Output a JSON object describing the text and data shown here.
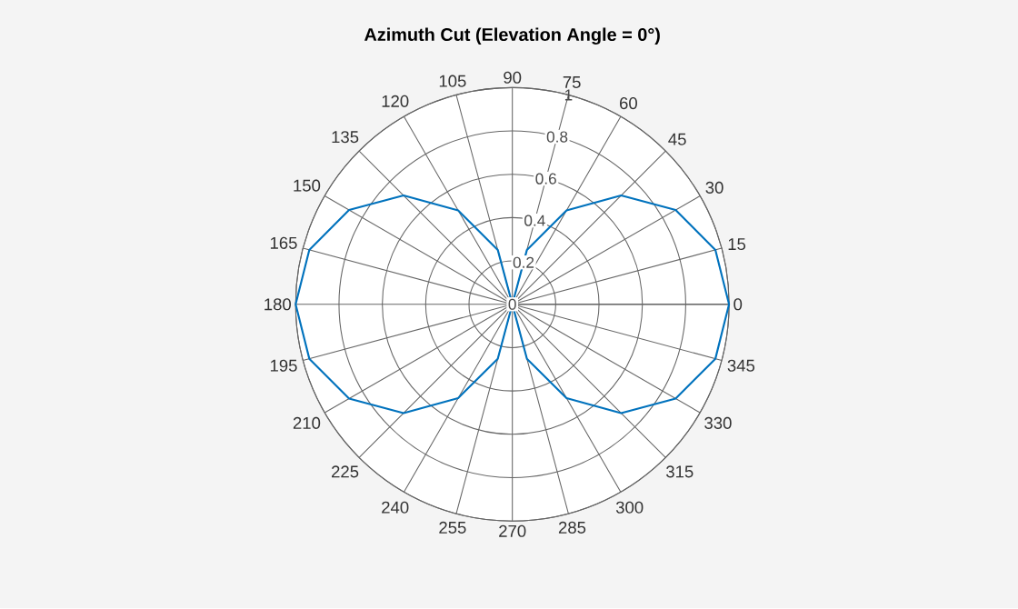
{
  "chart_data": {
    "type": "radar",
    "title": "Azimuth Cut (Elevation Angle = 0°)",
    "categories": [
      "90",
      "75",
      "60",
      "45",
      "30",
      "15",
      "0",
      "345",
      "330",
      "315",
      "300",
      "285",
      "270",
      "255",
      "240",
      "225",
      "210",
      "195",
      "180",
      "165",
      "150",
      "135",
      "120",
      "105"
    ],
    "series": [
      {
        "color": "#0072bd",
        "values": [
          0,
          0.26,
          0.5,
          0.71,
          0.87,
          0.97,
          1,
          0.97,
          0.87,
          0.71,
          0.5,
          0.26,
          0,
          0.26,
          0.5,
          0.71,
          0.87,
          0.97,
          1,
          0.97,
          0.87,
          0.71,
          0.5,
          0.26
        ]
      }
    ],
    "ylim": [
      0,
      1
    ],
    "yticks": [
      0,
      0.2,
      0.4,
      0.6,
      0.8,
      1
    ],
    "grid": true
  }
}
